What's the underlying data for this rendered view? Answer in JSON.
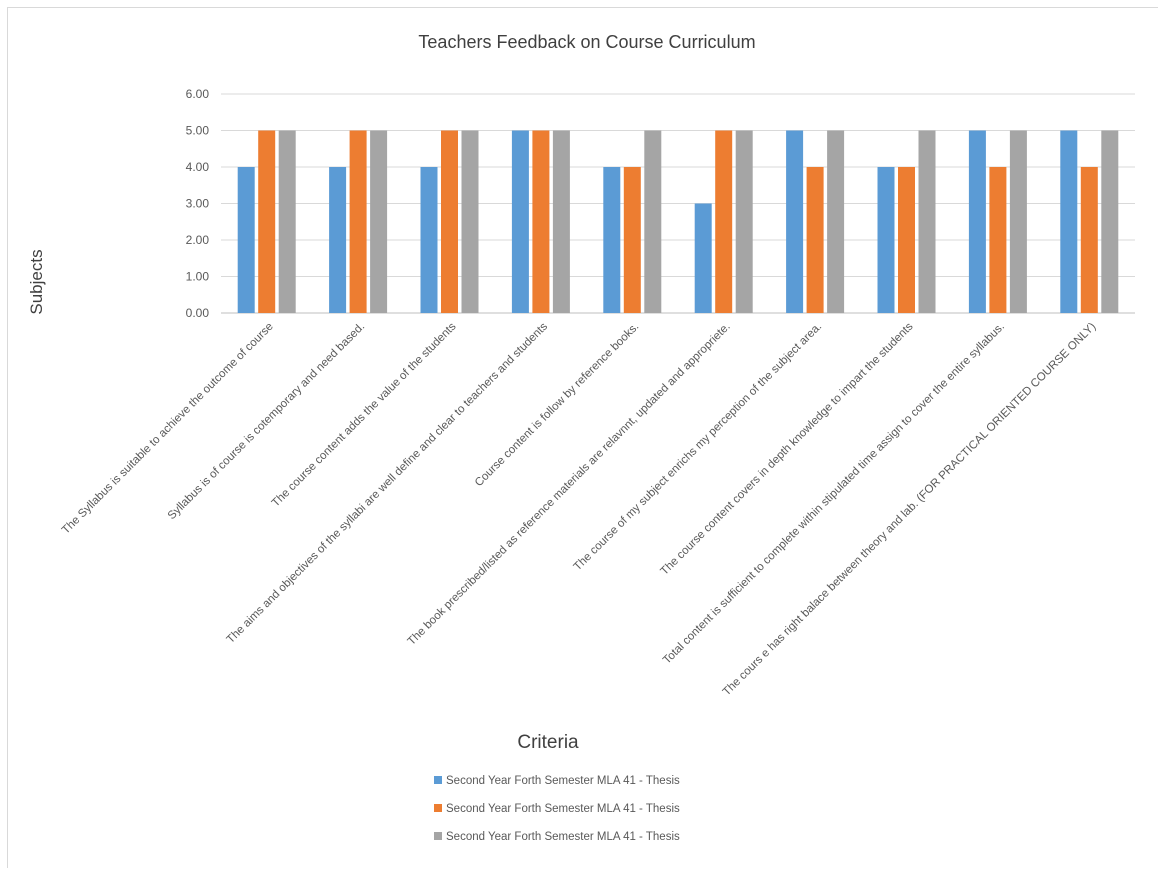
{
  "chart_data": {
    "type": "bar",
    "title": "Teachers Feedback on Course Curriculum",
    "xlabel": "Criteria",
    "ylabel": "Subjects",
    "ylim": [
      0,
      6
    ],
    "yticks": [
      "0.00",
      "1.00",
      "2.00",
      "3.00",
      "4.00",
      "5.00",
      "6.00"
    ],
    "grid": true,
    "legend_position": "bottom",
    "categories": [
      "The Syllabus is suitable to achieve the outcome of course",
      "Syllabus is of course is cotemporary and need based.",
      "The course content adds the value of the students",
      "The aims and objectives of the syllabi are well define and clear to teachers and students",
      "Course content is follow by reference books.",
      "The book prescribed/listed as reference materials are relavnnt, updated and appropriete.",
      "The course of my subject enrichs my perception of the subject area.",
      "The course content covers in depth knowledge to impart the students",
      "Total content is sufficient to complete within stipulated time assign to cover the entire syllabus.",
      "The cours e has right balace between theory and lab. (FOR PRACTICAL ORIENTED COURSE ONLY)"
    ],
    "series": [
      {
        "name": "Second Year Forth Semester MLA 41 - Thesis",
        "color": "#5b9bd5",
        "values": [
          4,
          4,
          4,
          5,
          4,
          3,
          5,
          4,
          5,
          5
        ]
      },
      {
        "name": "Second Year Forth Semester MLA 41 - Thesis",
        "color": "#ed7d31",
        "values": [
          5,
          5,
          5,
          5,
          4,
          5,
          4,
          4,
          4,
          4
        ]
      },
      {
        "name": "Second Year Forth Semester MLA 41 - Thesis",
        "color": "#a5a5a5",
        "values": [
          5,
          5,
          5,
          5,
          5,
          5,
          5,
          5,
          5,
          5
        ]
      }
    ]
  }
}
